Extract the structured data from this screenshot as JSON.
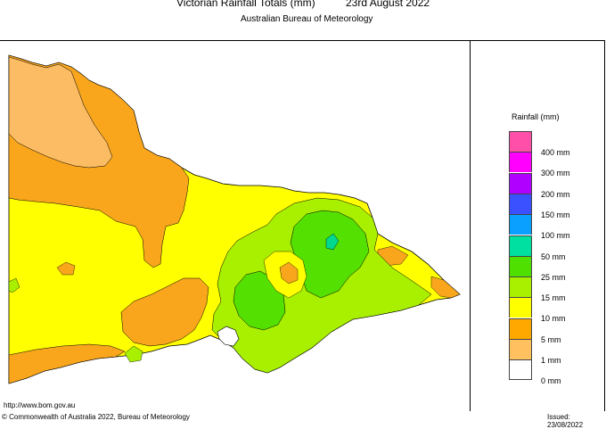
{
  "header": {
    "title": "Victorian Rainfall Totals (mm)",
    "date": "23rd August 2022",
    "subtitle": "Australian Bureau of Meteorology"
  },
  "legend": {
    "title": "Rainfall (mm)",
    "items": [
      {
        "label": "400 mm",
        "color": "#ff4fa8"
      },
      {
        "label": "300 mm",
        "color": "#ff00ff"
      },
      {
        "label": "200 mm",
        "color": "#b000ff"
      },
      {
        "label": "150 mm",
        "color": "#3b50ff"
      },
      {
        "label": "100 mm",
        "color": "#0aa0ff"
      },
      {
        "label": "50 mm",
        "color": "#00e0a0"
      },
      {
        "label": "25 mm",
        "color": "#50e000"
      },
      {
        "label": "15 mm",
        "color": "#a8f000"
      },
      {
        "label": "10 mm",
        "color": "#ffff00"
      },
      {
        "label": "5 mm",
        "color": "#ffa800"
      },
      {
        "label": "1 mm",
        "color": "#ffc060"
      },
      {
        "label": "0 mm",
        "color": "#ffffff"
      }
    ]
  },
  "colors": {
    "band_1mm": "#fcbc64",
    "band_5mm": "#f9a61c",
    "band_10mm": "#ffff00",
    "band_15mm": "#a8ef00",
    "band_25mm": "#54e000",
    "band_50mm": "#00d890",
    "outline": "#000000"
  },
  "footer": {
    "url": "http://www.bom.gov.au",
    "copyright": "© Commonwealth of Australia 2022, Bureau of Meteorology",
    "issued": "Issued: 23/08/2022"
  }
}
